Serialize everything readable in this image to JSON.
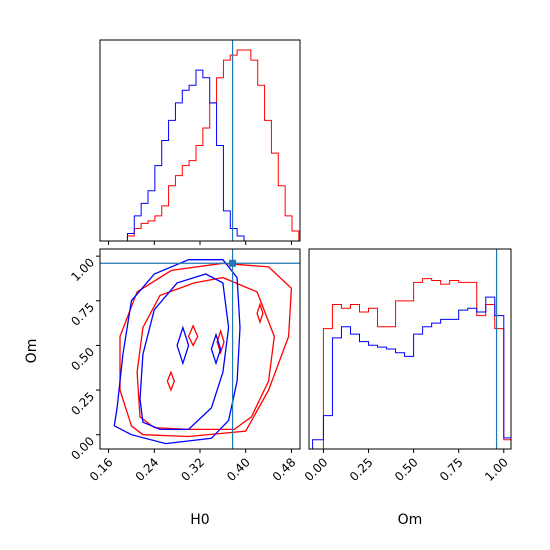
{
  "chart_data": {
    "type": "corner",
    "colors": {
      "series_a": "#ff0000",
      "series_b": "#0000ff",
      "truth": "#1f77b4"
    },
    "truth": {
      "H0": 0.377,
      "Om": 0.96
    },
    "axes": {
      "H0": {
        "label": "H0",
        "range": [
          0.145,
          0.495
        ],
        "ticks": [
          "0.16",
          "0.24",
          "0.32",
          "0.40",
          "0.48"
        ],
        "tick_values": [
          0.16,
          0.24,
          0.32,
          0.4,
          0.48
        ]
      },
      "Om": {
        "label": "Om",
        "range": [
          -0.08,
          1.04
        ],
        "ticks": [
          "0.00",
          "0.25",
          "0.50",
          "0.75",
          "1.00"
        ],
        "tick_values": [
          0.0,
          0.25,
          0.5,
          0.75,
          1.0
        ]
      }
    },
    "hist_H0": {
      "bin_edges": [
        0.145,
        0.157,
        0.169,
        0.181,
        0.193,
        0.205,
        0.217,
        0.229,
        0.241,
        0.253,
        0.265,
        0.277,
        0.289,
        0.301,
        0.313,
        0.325,
        0.337,
        0.349,
        0.361,
        0.373,
        0.385,
        0.397,
        0.409,
        0.421,
        0.433,
        0.445,
        0.457,
        0.469,
        0.481,
        0.493
      ],
      "series_a": [
        0,
        0,
        0,
        0,
        0.02,
        0.05,
        0.07,
        0.08,
        0.1,
        0.14,
        0.22,
        0.26,
        0.3,
        0.32,
        0.38,
        0.45,
        0.55,
        0.65,
        0.72,
        0.74,
        0.76,
        0.76,
        0.72,
        0.62,
        0.48,
        0.35,
        0.22,
        0.1,
        0.04
      ],
      "series_b": [
        0,
        0,
        0,
        0,
        0.03,
        0.1,
        0.15,
        0.2,
        0.3,
        0.4,
        0.48,
        0.55,
        0.6,
        0.62,
        0.68,
        0.65,
        0.55,
        0.38,
        0.12,
        0.05,
        0.02,
        0,
        0,
        0,
        0,
        0,
        0,
        0,
        0
      ]
    },
    "hist_Om": {
      "bin_edges": [
        -0.06,
        0,
        0.05,
        0.1,
        0.15,
        0.2,
        0.25,
        0.3,
        0.35,
        0.4,
        0.45,
        0.5,
        0.55,
        0.6,
        0.65,
        0.7,
        0.75,
        0.8,
        0.85,
        0.9,
        0.95,
        1.0,
        1.04
      ],
      "series_a": [
        0,
        0.65,
        0.78,
        0.76,
        0.78,
        0.74,
        0.76,
        0.66,
        0.66,
        0.8,
        0.8,
        0.9,
        0.92,
        0.91,
        0.89,
        0.91,
        0.9,
        0.9,
        0.72,
        0.78,
        0.65,
        0.05
      ],
      "series_b": [
        0.05,
        0.18,
        0.6,
        0.66,
        0.62,
        0.58,
        0.56,
        0.55,
        0.54,
        0.52,
        0.5,
        0.62,
        0.66,
        0.68,
        0.7,
        0.7,
        0.75,
        0.76,
        0.74,
        0.82,
        0.72,
        0.06
      ]
    },
    "contours": {
      "series_a": [
        [
          [
            0.2,
            0.05
          ],
          [
            0.18,
            0.25
          ],
          [
            0.18,
            0.55
          ],
          [
            0.21,
            0.8
          ],
          [
            0.27,
            0.92
          ],
          [
            0.36,
            0.96
          ],
          [
            0.44,
            0.94
          ],
          [
            0.48,
            0.82
          ],
          [
            0.475,
            0.55
          ],
          [
            0.44,
            0.25
          ],
          [
            0.4,
            0.02
          ],
          [
            0.3,
            -0.01
          ],
          [
            0.22,
            0.0
          ]
        ],
        [
          [
            0.215,
            0.1
          ],
          [
            0.21,
            0.35
          ],
          [
            0.22,
            0.6
          ],
          [
            0.25,
            0.78
          ],
          [
            0.31,
            0.85
          ],
          [
            0.36,
            0.88
          ],
          [
            0.42,
            0.8
          ],
          [
            0.45,
            0.55
          ],
          [
            0.44,
            0.3
          ],
          [
            0.41,
            0.1
          ],
          [
            0.38,
            0.03
          ],
          [
            0.3,
            0.03
          ],
          [
            0.24,
            0.04
          ]
        ],
        [
          [
            0.3,
            0.55
          ],
          [
            0.308,
            0.61
          ],
          [
            0.316,
            0.55
          ],
          [
            0.308,
            0.5
          ]
        ],
        [
          [
            0.35,
            0.52
          ],
          [
            0.356,
            0.58
          ],
          [
            0.362,
            0.52
          ],
          [
            0.356,
            0.46
          ]
        ],
        [
          [
            0.263,
            0.3
          ],
          [
            0.269,
            0.35
          ],
          [
            0.275,
            0.3
          ],
          [
            0.269,
            0.25
          ]
        ],
        [
          [
            0.42,
            0.68
          ],
          [
            0.425,
            0.73
          ],
          [
            0.43,
            0.68
          ],
          [
            0.425,
            0.63
          ]
        ]
      ],
      "series_b": [
        [
          [
            0.175,
            0.15
          ],
          [
            0.185,
            0.45
          ],
          [
            0.2,
            0.75
          ],
          [
            0.24,
            0.9
          ],
          [
            0.3,
            0.98
          ],
          [
            0.36,
            0.98
          ],
          [
            0.385,
            0.88
          ],
          [
            0.39,
            0.6
          ],
          [
            0.385,
            0.3
          ],
          [
            0.37,
            0.08
          ],
          [
            0.34,
            -0.02
          ],
          [
            0.26,
            -0.05
          ],
          [
            0.2,
            0.0
          ],
          [
            0.17,
            0.05
          ]
        ],
        [
          [
            0.215,
            0.2
          ],
          [
            0.22,
            0.45
          ],
          [
            0.24,
            0.7
          ],
          [
            0.28,
            0.85
          ],
          [
            0.33,
            0.9
          ],
          [
            0.36,
            0.85
          ],
          [
            0.37,
            0.6
          ],
          [
            0.36,
            0.35
          ],
          [
            0.34,
            0.15
          ],
          [
            0.3,
            0.03
          ],
          [
            0.25,
            0.03
          ],
          [
            0.22,
            0.07
          ]
        ],
        [
          [
            0.28,
            0.5
          ],
          [
            0.29,
            0.6
          ],
          [
            0.3,
            0.5
          ],
          [
            0.29,
            0.4
          ]
        ],
        [
          [
            0.34,
            0.48
          ],
          [
            0.348,
            0.56
          ],
          [
            0.356,
            0.48
          ],
          [
            0.348,
            0.4
          ]
        ]
      ]
    }
  }
}
